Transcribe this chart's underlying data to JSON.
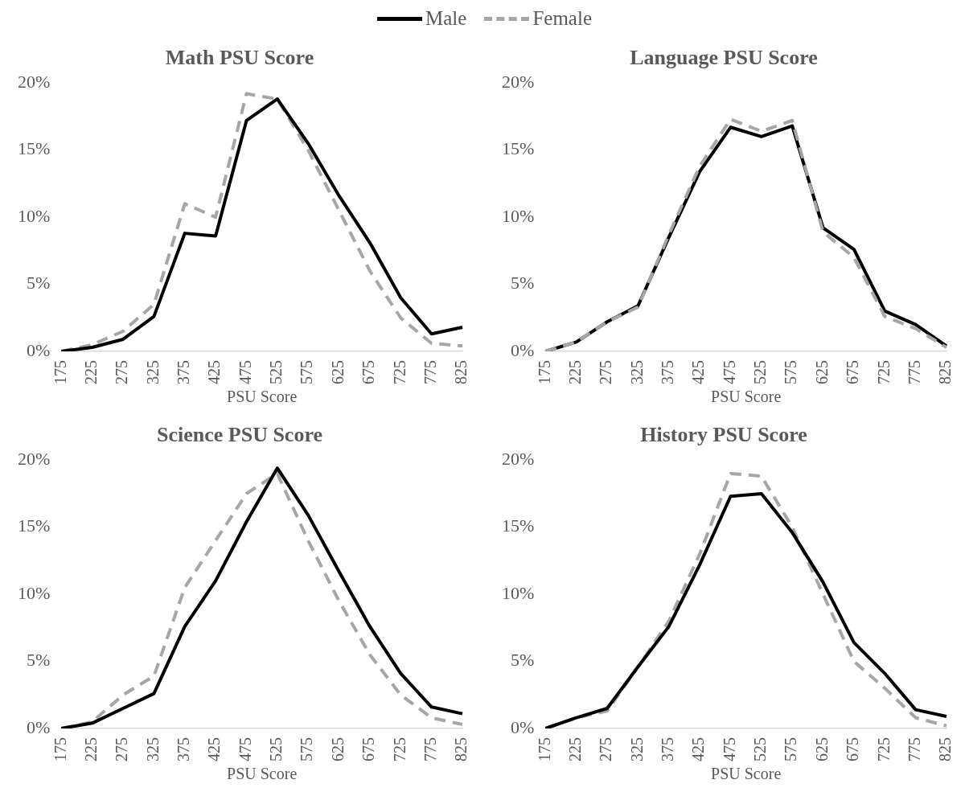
{
  "chart_data": [
    {
      "type": "line",
      "title": "Math PSU Score",
      "xlabel": "PSU Score",
      "categories": [
        "175",
        "225",
        "275",
        "325",
        "375",
        "425",
        "475",
        "525",
        "575",
        "625",
        "675",
        "725",
        "775",
        "825"
      ],
      "ylim": [
        0,
        20
      ],
      "yticks": [
        {
          "value": 0,
          "label": "0%"
        },
        {
          "value": 5,
          "label": "5%"
        },
        {
          "value": 10,
          "label": "10%"
        },
        {
          "value": 15,
          "label": "15%"
        },
        {
          "value": 20,
          "label": "20%"
        }
      ],
      "legend": "top",
      "marker": "none",
      "series": [
        {
          "name": "Male",
          "color": "#000000",
          "line_style": "solid",
          "values": [
            0,
            0.3,
            0.9,
            2.6,
            8.8,
            8.6,
            17.2,
            18.8,
            15.5,
            11.6,
            8.1,
            4.0,
            1.3,
            1.8
          ]
        },
        {
          "name": "Female",
          "color": "#a6a6a6",
          "line_style": "dashed",
          "values": [
            0,
            0.5,
            1.5,
            3.5,
            11.0,
            10.0,
            19.2,
            18.8,
            15.0,
            10.5,
            6.0,
            2.5,
            0.6,
            0.4
          ]
        }
      ]
    },
    {
      "type": "line",
      "title": "Language PSU Score",
      "xlabel": "PSU Score",
      "categories": [
        "175",
        "225",
        "275",
        "325",
        "375",
        "425",
        "475",
        "525",
        "575",
        "625",
        "675",
        "725",
        "775",
        "825"
      ],
      "ylim": [
        0,
        20
      ],
      "yticks": [
        {
          "value": 0,
          "label": "0%"
        },
        {
          "value": 5,
          "label": "5%"
        },
        {
          "value": 10,
          "label": "10%"
        },
        {
          "value": 15,
          "label": "15%"
        },
        {
          "value": 20,
          "label": "20%"
        }
      ],
      "marker": "none",
      "series": [
        {
          "color": "#a6a6a6",
          "line_style": "dashed",
          "values": [
            0,
            0.7,
            2.2,
            3.3,
            8.7,
            13.8,
            17.3,
            16.4,
            17.2,
            8.9,
            7.0,
            2.6,
            1.7,
            0.3
          ]
        },
        {
          "color": "#000000",
          "line_style": "solid",
          "values": [
            0,
            0.7,
            2.2,
            3.4,
            8.5,
            13.4,
            16.7,
            16.0,
            16.8,
            9.2,
            7.6,
            3.0,
            2.0,
            0.4
          ]
        }
      ]
    },
    {
      "type": "line",
      "title": "Science PSU Score",
      "xlabel": "PSU Score",
      "categories": [
        "175",
        "225",
        "275",
        "325",
        "375",
        "425",
        "475",
        "525",
        "575",
        "625",
        "675",
        "725",
        "775",
        "825"
      ],
      "ylim": [
        0,
        20
      ],
      "yticks": [
        {
          "value": 0,
          "label": "0%"
        },
        {
          "value": 5,
          "label": "5%"
        },
        {
          "value": 10,
          "label": "10%"
        },
        {
          "value": 15,
          "label": "15%"
        },
        {
          "value": 20,
          "label": "20%"
        }
      ],
      "marker": "none",
      "series": [
        {
          "color": "#000000",
          "line_style": "solid",
          "values": [
            0,
            0.4,
            1.5,
            2.6,
            7.6,
            11.0,
            15.4,
            19.4,
            15.9,
            11.7,
            7.6,
            4.1,
            1.6,
            1.1
          ]
        },
        {
          "color": "#a6a6a6",
          "line_style": "dashed",
          "values": [
            0,
            0.5,
            2.5,
            3.9,
            10.5,
            14.0,
            17.5,
            19.0,
            14.0,
            9.5,
            5.5,
            2.5,
            0.8,
            0.3
          ]
        }
      ]
    },
    {
      "type": "line",
      "title": "History PSU Score",
      "xlabel": "PSU Score",
      "categories": [
        "175",
        "225",
        "275",
        "325",
        "375",
        "425",
        "475",
        "525",
        "575",
        "625",
        "675",
        "725",
        "775",
        "825"
      ],
      "ylim": [
        0,
        20
      ],
      "yticks": [
        {
          "value": 0,
          "label": "0%"
        },
        {
          "value": 5,
          "label": "5%"
        },
        {
          "value": 10,
          "label": "10%"
        },
        {
          "value": 15,
          "label": "15%"
        },
        {
          "value": 20,
          "label": "20%"
        }
      ],
      "marker": "none",
      "series": [
        {
          "color": "#000000",
          "line_style": "solid",
          "values": [
            0,
            0.8,
            1.5,
            4.6,
            7.6,
            12.2,
            17.3,
            17.5,
            14.6,
            10.9,
            6.4,
            4.1,
            1.4,
            0.9
          ]
        },
        {
          "color": "#a6a6a6",
          "line_style": "dashed",
          "values": [
            0,
            0.8,
            1.3,
            4.6,
            8.0,
            13.0,
            19.0,
            18.8,
            15.0,
            10.0,
            5.0,
            3.0,
            0.8,
            0.2
          ]
        }
      ]
    }
  ]
}
